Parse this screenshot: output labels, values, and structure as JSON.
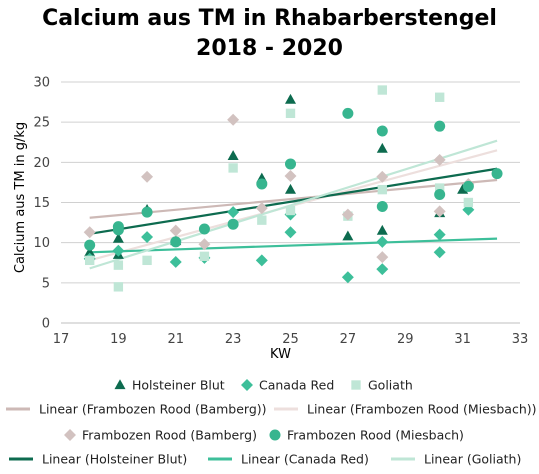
{
  "chart_data": {
    "type": "scatter",
    "title_lines": [
      "Calcium aus TM in Rhabarberstengel",
      "2018 - 2020"
    ],
    "xlabel": "KW",
    "ylabel": "Calcium aus TM in g/kg",
    "xlim": [
      17,
      33
    ],
    "ylim": [
      0,
      30
    ],
    "x_ticks": [
      17,
      19,
      21,
      23,
      25,
      27,
      29,
      31,
      33
    ],
    "y_ticks": [
      0,
      5,
      10,
      15,
      20,
      25,
      30
    ],
    "grid": "horizontal",
    "legend_position": "bottom",
    "colors": {
      "holsteiner": "#0d6b4f",
      "canada": "#3dbf9a",
      "goliath": "#bfe6d6",
      "bamberg": "#d2c2c0",
      "miesbach": "#37b58f",
      "lin_bamberg": "#cdb9b6",
      "lin_miesbach": "#eddfdd",
      "lin_holsteiner": "#0d6b4f",
      "lin_canada": "#3dbf9a",
      "lin_goliath": "#bfe6d6",
      "grid": "#d0d0d0"
    },
    "series": [
      {
        "key": "holsteiner",
        "name": "Holsteiner Blut",
        "marker": "triangle",
        "points": [
          [
            18,
            8.8
          ],
          [
            19,
            8.5
          ],
          [
            19,
            10.5
          ],
          [
            20,
            14.1
          ],
          [
            21,
            10.2
          ],
          [
            23,
            20.8
          ],
          [
            24,
            18.0
          ],
          [
            25,
            27.8
          ],
          [
            25,
            16.6
          ],
          [
            27,
            10.8
          ],
          [
            28.2,
            11.5
          ],
          [
            28.2,
            21.7
          ],
          [
            30.2,
            13.7
          ],
          [
            31,
            16.6
          ]
        ]
      },
      {
        "key": "canada",
        "name": "Canada Red",
        "marker": "diamond",
        "points": [
          [
            18,
            8.0
          ],
          [
            19,
            9.0
          ],
          [
            20,
            10.7
          ],
          [
            21,
            7.6
          ],
          [
            22,
            8.1
          ],
          [
            23,
            13.8
          ],
          [
            24,
            7.8
          ],
          [
            25,
            11.3
          ],
          [
            25,
            13.5
          ],
          [
            27,
            5.7
          ],
          [
            28.2,
            6.7
          ],
          [
            28.2,
            10.1
          ],
          [
            30.2,
            8.8
          ],
          [
            30.2,
            11.0
          ],
          [
            31.2,
            14.1
          ]
        ]
      },
      {
        "key": "goliath",
        "name": "Goliath",
        "marker": "square",
        "points": [
          [
            18,
            7.8
          ],
          [
            19,
            4.5
          ],
          [
            19,
            7.2
          ],
          [
            20,
            7.8
          ],
          [
            22,
            8.3
          ],
          [
            23,
            19.3
          ],
          [
            24,
            12.8
          ],
          [
            25,
            26.1
          ],
          [
            25,
            14.0
          ],
          [
            27,
            13.3
          ],
          [
            28.2,
            29.0
          ],
          [
            28.2,
            16.6
          ],
          [
            30.2,
            28.1
          ],
          [
            30.2,
            16.8
          ],
          [
            31.2,
            15.0
          ]
        ]
      },
      {
        "key": "bamberg",
        "name": "Frambozen Rood (Bamberg)",
        "marker": "diamond",
        "points": [
          [
            18,
            11.3
          ],
          [
            20,
            18.2
          ],
          [
            21,
            11.5
          ],
          [
            22,
            9.8
          ],
          [
            23,
            25.3
          ],
          [
            24,
            14.3
          ],
          [
            25,
            18.3
          ],
          [
            27,
            13.5
          ],
          [
            28.2,
            8.2
          ],
          [
            28.2,
            18.2
          ],
          [
            30.2,
            20.3
          ],
          [
            30.2,
            13.9
          ],
          [
            31.2,
            17.3
          ]
        ]
      },
      {
        "key": "miesbach",
        "name": "Frambozen Rood (Miesbach)",
        "marker": "circle",
        "points": [
          [
            18,
            9.7
          ],
          [
            19,
            12.0
          ],
          [
            19,
            11.6
          ],
          [
            20,
            13.8
          ],
          [
            21,
            10.1
          ],
          [
            22,
            11.7
          ],
          [
            23,
            12.3
          ],
          [
            24,
            17.3
          ],
          [
            25,
            19.8
          ],
          [
            27,
            26.1
          ],
          [
            28.2,
            23.9
          ],
          [
            28.2,
            14.5
          ],
          [
            30.2,
            24.5
          ],
          [
            30.2,
            16.0
          ],
          [
            31.2,
            17.0
          ],
          [
            32.2,
            18.6
          ]
        ]
      }
    ],
    "trendlines": [
      {
        "key": "lin_bamberg",
        "name": "Linear (Frambozen Rood (Bamberg))",
        "x": [
          18,
          32.2
        ],
        "y": [
          13.1,
          17.8
        ]
      },
      {
        "key": "lin_miesbach",
        "name": "Linear (Frambozen Rood (Miesbach))",
        "x": [
          18,
          32.2
        ],
        "y": [
          7.8,
          21.5
        ]
      },
      {
        "key": "lin_holsteiner",
        "name": "Linear (Holsteiner Blut)",
        "x": [
          18,
          32.2
        ],
        "y": [
          11.1,
          19.2
        ]
      },
      {
        "key": "lin_canada",
        "name": "Linear (Canada Red)",
        "x": [
          18,
          32.2
        ],
        "y": [
          8.8,
          10.5
        ]
      },
      {
        "key": "lin_goliath",
        "name": "Linear (Goliath)",
        "x": [
          18,
          32.2
        ],
        "y": [
          6.8,
          22.7
        ]
      }
    ]
  }
}
